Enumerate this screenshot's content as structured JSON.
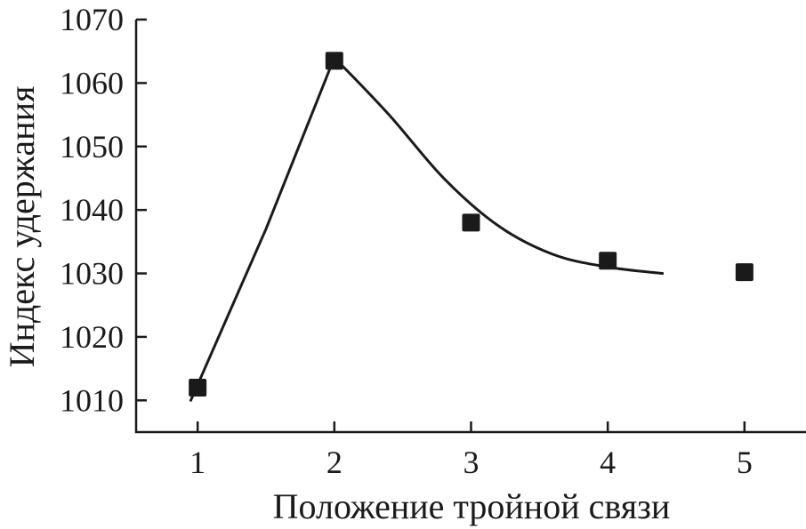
{
  "chart_data": {
    "type": "scatter",
    "title": "",
    "xlabel": "Положение тройной связи",
    "ylabel": "Индекс удержания",
    "xlim": [
      0.55,
      5.45
    ],
    "ylim": [
      1005,
      1070
    ],
    "xticks": [
      "1",
      "2",
      "3",
      "4",
      "5"
    ],
    "yticks": [
      "1010",
      "1020",
      "1030",
      "1040",
      "1050",
      "1060",
      "1070"
    ],
    "grid": false,
    "legend": "none",
    "series": [
      {
        "points": [
          {
            "x": 1,
            "y": 1012
          },
          {
            "x": 2,
            "y": 1063.5
          },
          {
            "x": 3,
            "y": 1038
          },
          {
            "x": 4,
            "y": 1032
          },
          {
            "x": 5,
            "y": 1030.2
          }
        ]
      }
    ],
    "fit_curve": [
      {
        "x": 0.95,
        "y": 1010
      },
      {
        "x": 1.5,
        "y": 1037
      },
      {
        "x": 2.0,
        "y": 1064
      },
      {
        "x": 2.4,
        "y": 1055
      },
      {
        "x": 2.8,
        "y": 1045
      },
      {
        "x": 3.2,
        "y": 1037.5
      },
      {
        "x": 3.6,
        "y": 1033
      },
      {
        "x": 4.0,
        "y": 1031
      },
      {
        "x": 4.4,
        "y": 1030
      }
    ],
    "colors": {
      "ink": "#1a1a1a",
      "background": "#ffffff"
    }
  }
}
